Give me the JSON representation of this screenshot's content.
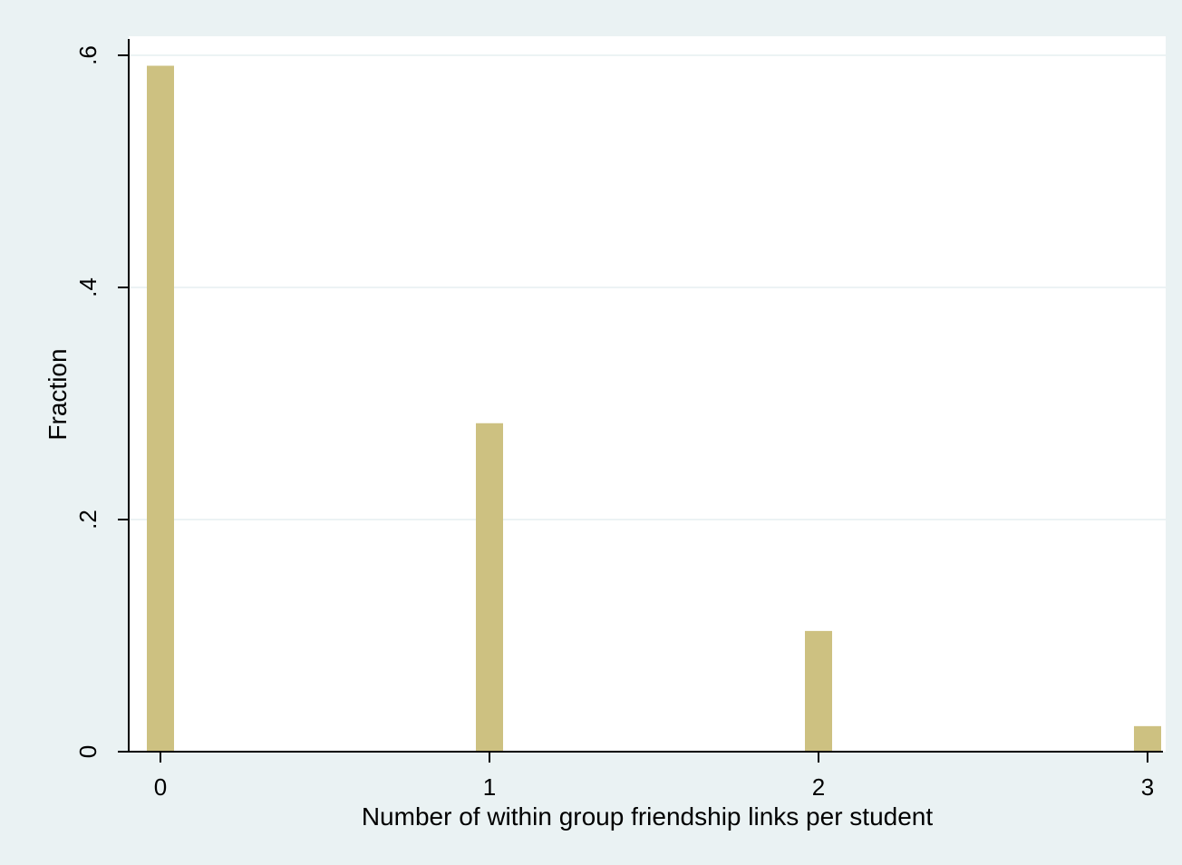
{
  "chart_data": {
    "type": "bar",
    "title": "",
    "xlabel": "Number of within group friendship links per student",
    "ylabel": "Fraction",
    "x": [
      0,
      1,
      2,
      3
    ],
    "values": [
      0.591,
      0.283,
      0.104,
      0.022
    ],
    "xlim": [
      -0.1,
      3.05
    ],
    "ylim": [
      0,
      0.62
    ],
    "xticks": [
      0,
      1,
      2,
      3
    ],
    "xtick_labels": [
      "0",
      "1",
      "2",
      "3"
    ],
    "yticks": [
      0,
      0.2,
      0.4,
      0.6
    ],
    "ytick_labels": [
      "0",
      ".2",
      ".4",
      ".6"
    ],
    "grid": "horizontal",
    "legend": "none",
    "colors": {
      "background": "#eaf2f3",
      "plot_area": "#ffffff",
      "bar": "#cdc181",
      "gridline": "#e6eff0",
      "axis": "#000000"
    }
  }
}
